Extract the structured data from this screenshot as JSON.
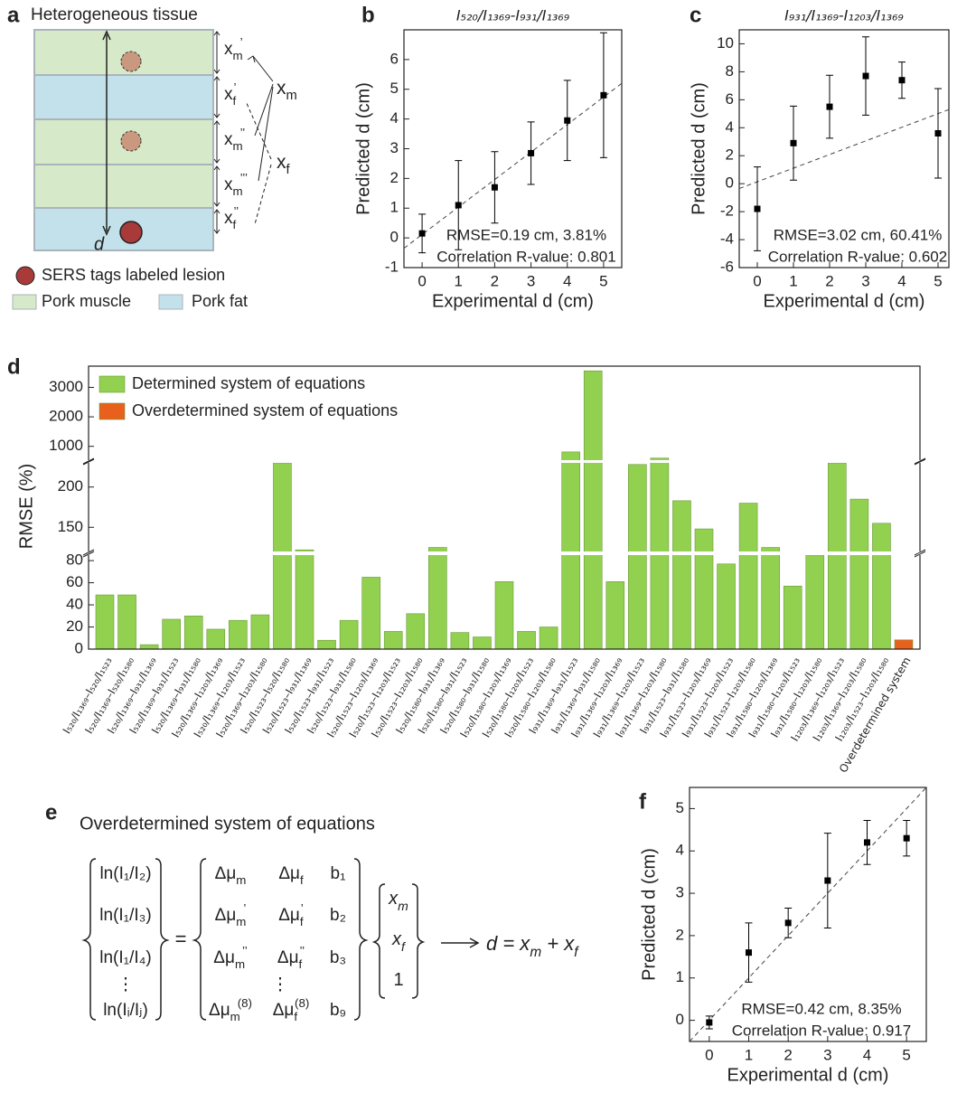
{
  "chart_data": [
    {
      "type": "scatter",
      "panel": "b",
      "title": "I₅₂₀/I₁₃₆₉-I₉₃₁/I₁₃₆₉",
      "xlabel": "Experimental d (cm)",
      "ylabel": "Predicted d (cm)",
      "x": [
        0,
        1,
        2,
        3,
        4,
        5
      ],
      "series": [
        {
          "color": "#000000",
          "values": [
            0.15,
            1.1,
            1.7,
            2.85,
            3.95,
            4.8
          ],
          "errors": [
            0.65,
            1.5,
            1.2,
            1.05,
            1.35,
            2.1
          ]
        }
      ],
      "reference_line": {
        "x": [
          -0.5,
          5.5
        ],
        "y": [
          -0.35,
          5.2
        ]
      },
      "xlim": [
        -0.5,
        5.5
      ],
      "ylim": [
        -1,
        7
      ],
      "xticks": [
        0,
        1,
        2,
        3,
        4,
        5
      ],
      "yticks": [
        -1,
        0,
        1,
        2,
        3,
        4,
        5,
        6
      ],
      "annotations": [
        "RMSE=0.19 cm, 3.81%",
        "Correlation R-value: 0.801"
      ]
    },
    {
      "type": "scatter",
      "panel": "c",
      "title": "I₉₃₁/I₁₃₆₉-I₁₂₀₃/I₁₃₆₉",
      "xlabel": "Experimental d (cm)",
      "ylabel": "Predicted d (cm)",
      "x": [
        0,
        1,
        2,
        3,
        4,
        5
      ],
      "series": [
        {
          "color": "#000000",
          "values": [
            -1.8,
            2.9,
            5.5,
            7.7,
            7.4,
            3.6
          ],
          "errors": [
            3.0,
            2.65,
            2.25,
            2.8,
            1.3,
            3.2
          ]
        }
      ],
      "reference_line": {
        "x": [
          -0.5,
          5.3
        ],
        "y": [
          -0.35,
          5.3
        ]
      },
      "xlim": [
        -0.5,
        5.3
      ],
      "ylim": [
        -6,
        11
      ],
      "xticks": [
        0,
        1,
        2,
        3,
        4,
        5
      ],
      "yticks": [
        -6,
        -4,
        -2,
        0,
        2,
        4,
        6,
        8,
        10
      ],
      "annotations": [
        "RMSE=3.02 cm, 60.41%",
        "Correlation R-value: 0.602"
      ]
    },
    {
      "type": "bar",
      "panel": "d",
      "ylabel": "RMSE (%)",
      "categories": [
        "I₅₂₀/I₁₃₆₉–I₅₂₀/I₁₅₂₃",
        "I₅₂₀/I₁₃₆₉–I₅₂₀/I₁₅₈₀",
        "I₅₂₀/I₁₃₆₉–I₉₃₁/I₁₃₆₉",
        "I₅₂₀/I₁₃₆₉–I₉₃₁/I₁₅₂₃",
        "I₅₂₀/I₁₃₆₉–I₉₃₁/I₁₅₈₀",
        "I₅₂₀/I₁₃₆₉–I₁₂₀₃/I₁₃₆₉",
        "I₅₂₀/I₁₃₆₉–I₁₂₀₃/I₁₅₂₃",
        "I₅₂₀/I₁₃₆₉–I₁₂₀₃/I₁₅₈₀",
        "I₅₂₀/I₁₅₂₃–I₅₂₀/I₁₅₈₀",
        "I₅₂₀/I₁₅₂₃–I₉₃₁/I₁₃₆₉",
        "I₅₂₀/I₁₅₂₃–I₉₃₁/I₁₅₂₃",
        "I₅₂₀/I₁₅₂₃–I₉₃₁/I₁₅₈₀",
        "I₅₂₀/I₁₅₂₃–I₁₂₀₃/I₁₃₆₉",
        "I₅₂₀/I₁₅₂₃–I₁₂₀₃/I₁₅₂₃",
        "I₅₂₀/I₁₅₂₃–I₁₂₀₃/I₁₅₈₀",
        "I₅₂₀/I₁₅₈₀–I₉₃₁/I₁₃₆₉",
        "I₅₂₀/I₁₅₈₀–I₉₃₁/I₁₅₂₃",
        "I₅₂₀/I₁₅₈₀–I₉₃₁/I₁₅₈₀",
        "I₅₂₀/I₁₅₈₀–I₁₂₀₃/I₁₃₆₉",
        "I₅₂₀/I₁₅₈₀–I₁₂₀₃/I₁₅₂₃",
        "I₅₂₀/I₁₅₈₀–I₁₂₀₃/I₁₅₈₀",
        "I₉₃₁/I₁₃₆₉–I₉₃₁/I₁₅₂₃",
        "I₉₃₁/I₁₃₆₉–I₉₃₁/I₁₅₈₀",
        "I₉₃₁/I₁₃₆₉–I₁₂₀₃/I₁₃₆₉",
        "I₉₃₁/I₁₃₆₉–I₁₂₀₃/I₁₅₂₃",
        "I₉₃₁/I₁₃₆₉–I₁₂₀₃/I₁₅₈₀",
        "I₉₃₁/I₁₅₂₃–I₉₃₁/I₁₅₈₀",
        "I₉₃₁/I₁₅₂₃–I₁₂₀₃/I₁₃₆₉",
        "I₉₃₁/I₁₅₂₃–I₁₂₀₃/I₁₅₂₃",
        "I₉₃₁/I₁₅₂₃–I₁₂₀₃/I₁₅₈₀",
        "I₉₃₁/I₁₅₈₀–I₁₂₀₃/I₁₃₆₉",
        "I₉₃₁/I₁₅₈₀–I₁₂₀₃/I₁₅₂₃",
        "I₉₃₁/I₁₅₈₀–I₁₂₀₃/I₁₅₈₀",
        "I₁₂₀₃/I₁₃₆₉–I₁₂₀₃/I₁₅₂₃",
        "I₁₂₀₃/I₁₃₆₉–I₁₂₀₃/I₁₅₈₀",
        "I₁₂₀₃/I₁₅₂₃–I₁₂₀₃/I₁₅₈₀",
        "Overdetermined system"
      ],
      "series": [
        {
          "name": "Determined system of equations",
          "color": "#92d050",
          "values": [
            49,
            49,
            4,
            27,
            30,
            18,
            26,
            31,
            230,
            122,
            8,
            26,
            65,
            16,
            32,
            125,
            15,
            11,
            61,
            16,
            20,
            810,
            3560,
            61,
            228,
            600,
            183,
            148,
            77,
            180,
            125,
            57,
            85,
            230,
            185,
            155,
            null
          ]
        },
        {
          "name": "Overdetermined system of equations",
          "color": "#e8601c",
          "values": [
            null,
            null,
            null,
            null,
            null,
            null,
            null,
            null,
            null,
            null,
            null,
            null,
            null,
            null,
            null,
            null,
            null,
            null,
            null,
            null,
            null,
            null,
            null,
            null,
            null,
            null,
            null,
            null,
            null,
            null,
            null,
            null,
            null,
            null,
            null,
            null,
            8.35
          ]
        }
      ],
      "y_segments": [
        [
          0,
          85
        ],
        [
          120,
          230
        ],
        [
          530,
          3720
        ]
      ],
      "yticks": [
        0,
        20,
        40,
        60,
        80,
        150,
        200,
        1000,
        2000,
        3000
      ],
      "legend": "upper left"
    },
    {
      "type": "scatter",
      "panel": "f",
      "xlabel": "Experimental d (cm)",
      "ylabel": "Predicted d (cm)",
      "x": [
        0,
        1,
        2,
        3,
        4,
        5
      ],
      "series": [
        {
          "color": "#000000",
          "values": [
            -0.05,
            1.6,
            2.3,
            3.3,
            4.2,
            4.3
          ],
          "errors": [
            0.15,
            0.7,
            0.35,
            1.12,
            0.52,
            0.42
          ]
        }
      ],
      "reference_line": {
        "x": [
          -0.5,
          5.5
        ],
        "y": [
          -0.5,
          5.5
        ]
      },
      "xlim": [
        -0.5,
        5.5
      ],
      "ylim": [
        -0.5,
        5.5
      ],
      "xticks": [
        0,
        1,
        2,
        3,
        4,
        5
      ],
      "yticks": [
        0,
        1,
        2,
        3,
        4,
        5
      ],
      "annotations": [
        "RMSE=0.42 cm, 8.35%",
        "Correlation R-value: 0.917"
      ]
    }
  ],
  "panel_a": {
    "label": "a",
    "title": "Heterogeneous tissue",
    "dimension_labels": [
      {
        "text": "x",
        "sub": "m",
        "sup": "’"
      },
      {
        "text": "x",
        "sub": "f",
        "sup": "’"
      },
      {
        "text": "x",
        "sub": "m",
        "sup": "’’"
      },
      {
        "text": "x",
        "sub": "m",
        "sup": "’’’"
      },
      {
        "text": "x",
        "sub": "f",
        "sup": "’’"
      }
    ],
    "xm": {
      "text": "x",
      "sub": "m"
    },
    "xf": {
      "text": "x",
      "sub": "f"
    },
    "depth": "d",
    "legend": [
      "SERS tags labeled lesion",
      "Pork muscle",
      "Pork fat"
    ]
  },
  "panel_e": {
    "label": "e",
    "title": "Overdetermined system of equations",
    "lhs": [
      "ln(I₁/I₂)",
      "ln(I₁/I₃)",
      "ln(I₁/I₄)",
      "⋮",
      "ln(Iᵢ/Iⱼ)"
    ],
    "equals": "=",
    "matrix": [
      [
        {
          "text": "Δμ",
          "sub": "m"
        },
        {
          "text": "Δμ",
          "sub": "f"
        },
        "b₁"
      ],
      [
        {
          "text": "Δμ",
          "sub": "m",
          "sup": "’"
        },
        {
          "text": "Δμ",
          "sub": "f",
          "sup": "’"
        },
        "b₂"
      ],
      [
        {
          "text": "Δμ",
          "sub": "m",
          "sup": "’’"
        },
        {
          "text": "Δμ",
          "sub": "f",
          "sup": "’’"
        },
        "b₃"
      ],
      [
        "⋮"
      ],
      [
        {
          "text": "Δμ",
          "sub": "m",
          "sup": "(8)"
        },
        {
          "text": "Δμ",
          "sub": "f",
          "sup": "(8)"
        },
        "b₉"
      ]
    ],
    "vector": [
      {
        "text": "x",
        "sub": "m"
      },
      {
        "text": "x",
        "sub": "f"
      },
      "1"
    ],
    "result": [
      {
        "text": "d = x",
        "sub": "m"
      },
      {
        "text": " + x",
        "sub": "f"
      }
    ],
    "highlight_color": "#d0263a"
  }
}
